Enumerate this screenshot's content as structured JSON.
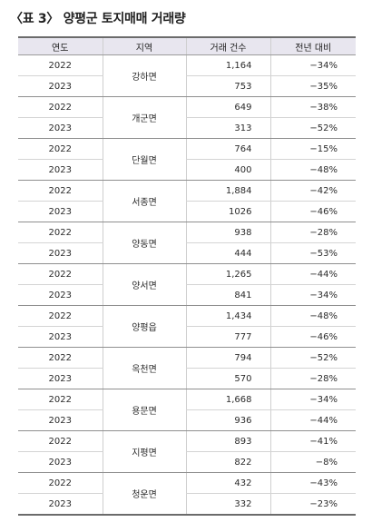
{
  "caption": "〈표 3〉 양평군 토지매매 거래량",
  "table": {
    "headers": {
      "year": "연도",
      "region": "지역",
      "count": "거래 건수",
      "change": "전년 대비"
    },
    "groups": [
      {
        "region": "강하면",
        "rows": [
          {
            "year": "2022",
            "count": "1,164",
            "change": "−34%"
          },
          {
            "year": "2023",
            "count": "753",
            "change": "−35%"
          }
        ]
      },
      {
        "region": "개군면",
        "rows": [
          {
            "year": "2022",
            "count": "649",
            "change": "−38%"
          },
          {
            "year": "2023",
            "count": "313",
            "change": "−52%"
          }
        ]
      },
      {
        "region": "단월면",
        "rows": [
          {
            "year": "2022",
            "count": "764",
            "change": "−15%"
          },
          {
            "year": "2023",
            "count": "400",
            "change": "−48%"
          }
        ]
      },
      {
        "region": "서종면",
        "rows": [
          {
            "year": "2022",
            "count": "1,884",
            "change": "−42%"
          },
          {
            "year": "2023",
            "count": "1026",
            "change": "−46%"
          }
        ]
      },
      {
        "region": "양동면",
        "rows": [
          {
            "year": "2022",
            "count": "938",
            "change": "−28%"
          },
          {
            "year": "2023",
            "count": "444",
            "change": "−53%"
          }
        ]
      },
      {
        "region": "양서면",
        "rows": [
          {
            "year": "2022",
            "count": "1,265",
            "change": "−44%"
          },
          {
            "year": "2023",
            "count": "841",
            "change": "−34%"
          }
        ]
      },
      {
        "region": "양평읍",
        "rows": [
          {
            "year": "2022",
            "count": "1,434",
            "change": "−48%"
          },
          {
            "year": "2023",
            "count": "777",
            "change": "−46%"
          }
        ]
      },
      {
        "region": "옥천면",
        "rows": [
          {
            "year": "2022",
            "count": "794",
            "change": "−52%"
          },
          {
            "year": "2023",
            "count": "570",
            "change": "−28%"
          }
        ]
      },
      {
        "region": "용문면",
        "rows": [
          {
            "year": "2022",
            "count": "1,668",
            "change": "−34%"
          },
          {
            "year": "2023",
            "count": "936",
            "change": "−44%"
          }
        ]
      },
      {
        "region": "지평면",
        "rows": [
          {
            "year": "2022",
            "count": "893",
            "change": "−41%"
          },
          {
            "year": "2023",
            "count": "822",
            "change": "−8%"
          }
        ]
      },
      {
        "region": "청운면",
        "rows": [
          {
            "year": "2022",
            "count": "432",
            "change": "−43%"
          },
          {
            "year": "2023",
            "count": "332",
            "change": "−23%"
          }
        ]
      }
    ]
  },
  "colors": {
    "header_bg": "#e8e6ef",
    "change_text": "#2a5ba8",
    "rule": "#6b6b6b"
  }
}
